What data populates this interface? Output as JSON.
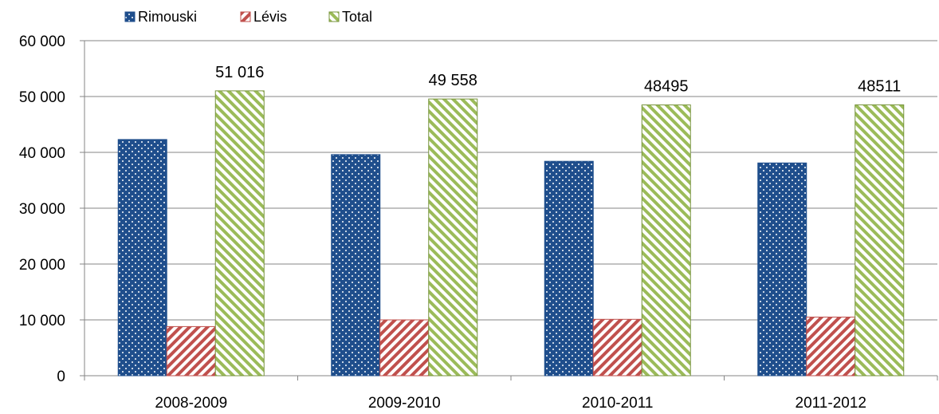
{
  "chart_data": {
    "type": "bar",
    "categories": [
      "2008-2009",
      "2009-2010",
      "2010-2011",
      "2011-2012"
    ],
    "series": [
      {
        "name": "Rimouski",
        "values": [
          42300,
          39600,
          38400,
          38100
        ],
        "color": "#1f4e8c",
        "pattern": "dots"
      },
      {
        "name": "Lévis",
        "values": [
          8800,
          10000,
          10100,
          10500
        ],
        "color": "#c0504d",
        "pattern": "diagonal-stripes"
      },
      {
        "name": "Total",
        "values": [
          51016,
          49558,
          48495,
          48511
        ],
        "color": "#9bbb59",
        "pattern": "diagonal-stripes"
      }
    ],
    "data_labels": {
      "Total": [
        "51 016",
        "49 558",
        "48495",
        "48511"
      ]
    },
    "y_ticks": [
      "0",
      "10 000",
      "20 000",
      "30 000",
      "40 000",
      "50 000",
      "60 000"
    ],
    "ylim": [
      0,
      60000
    ],
    "grid": true,
    "legend_position": "top-left"
  }
}
